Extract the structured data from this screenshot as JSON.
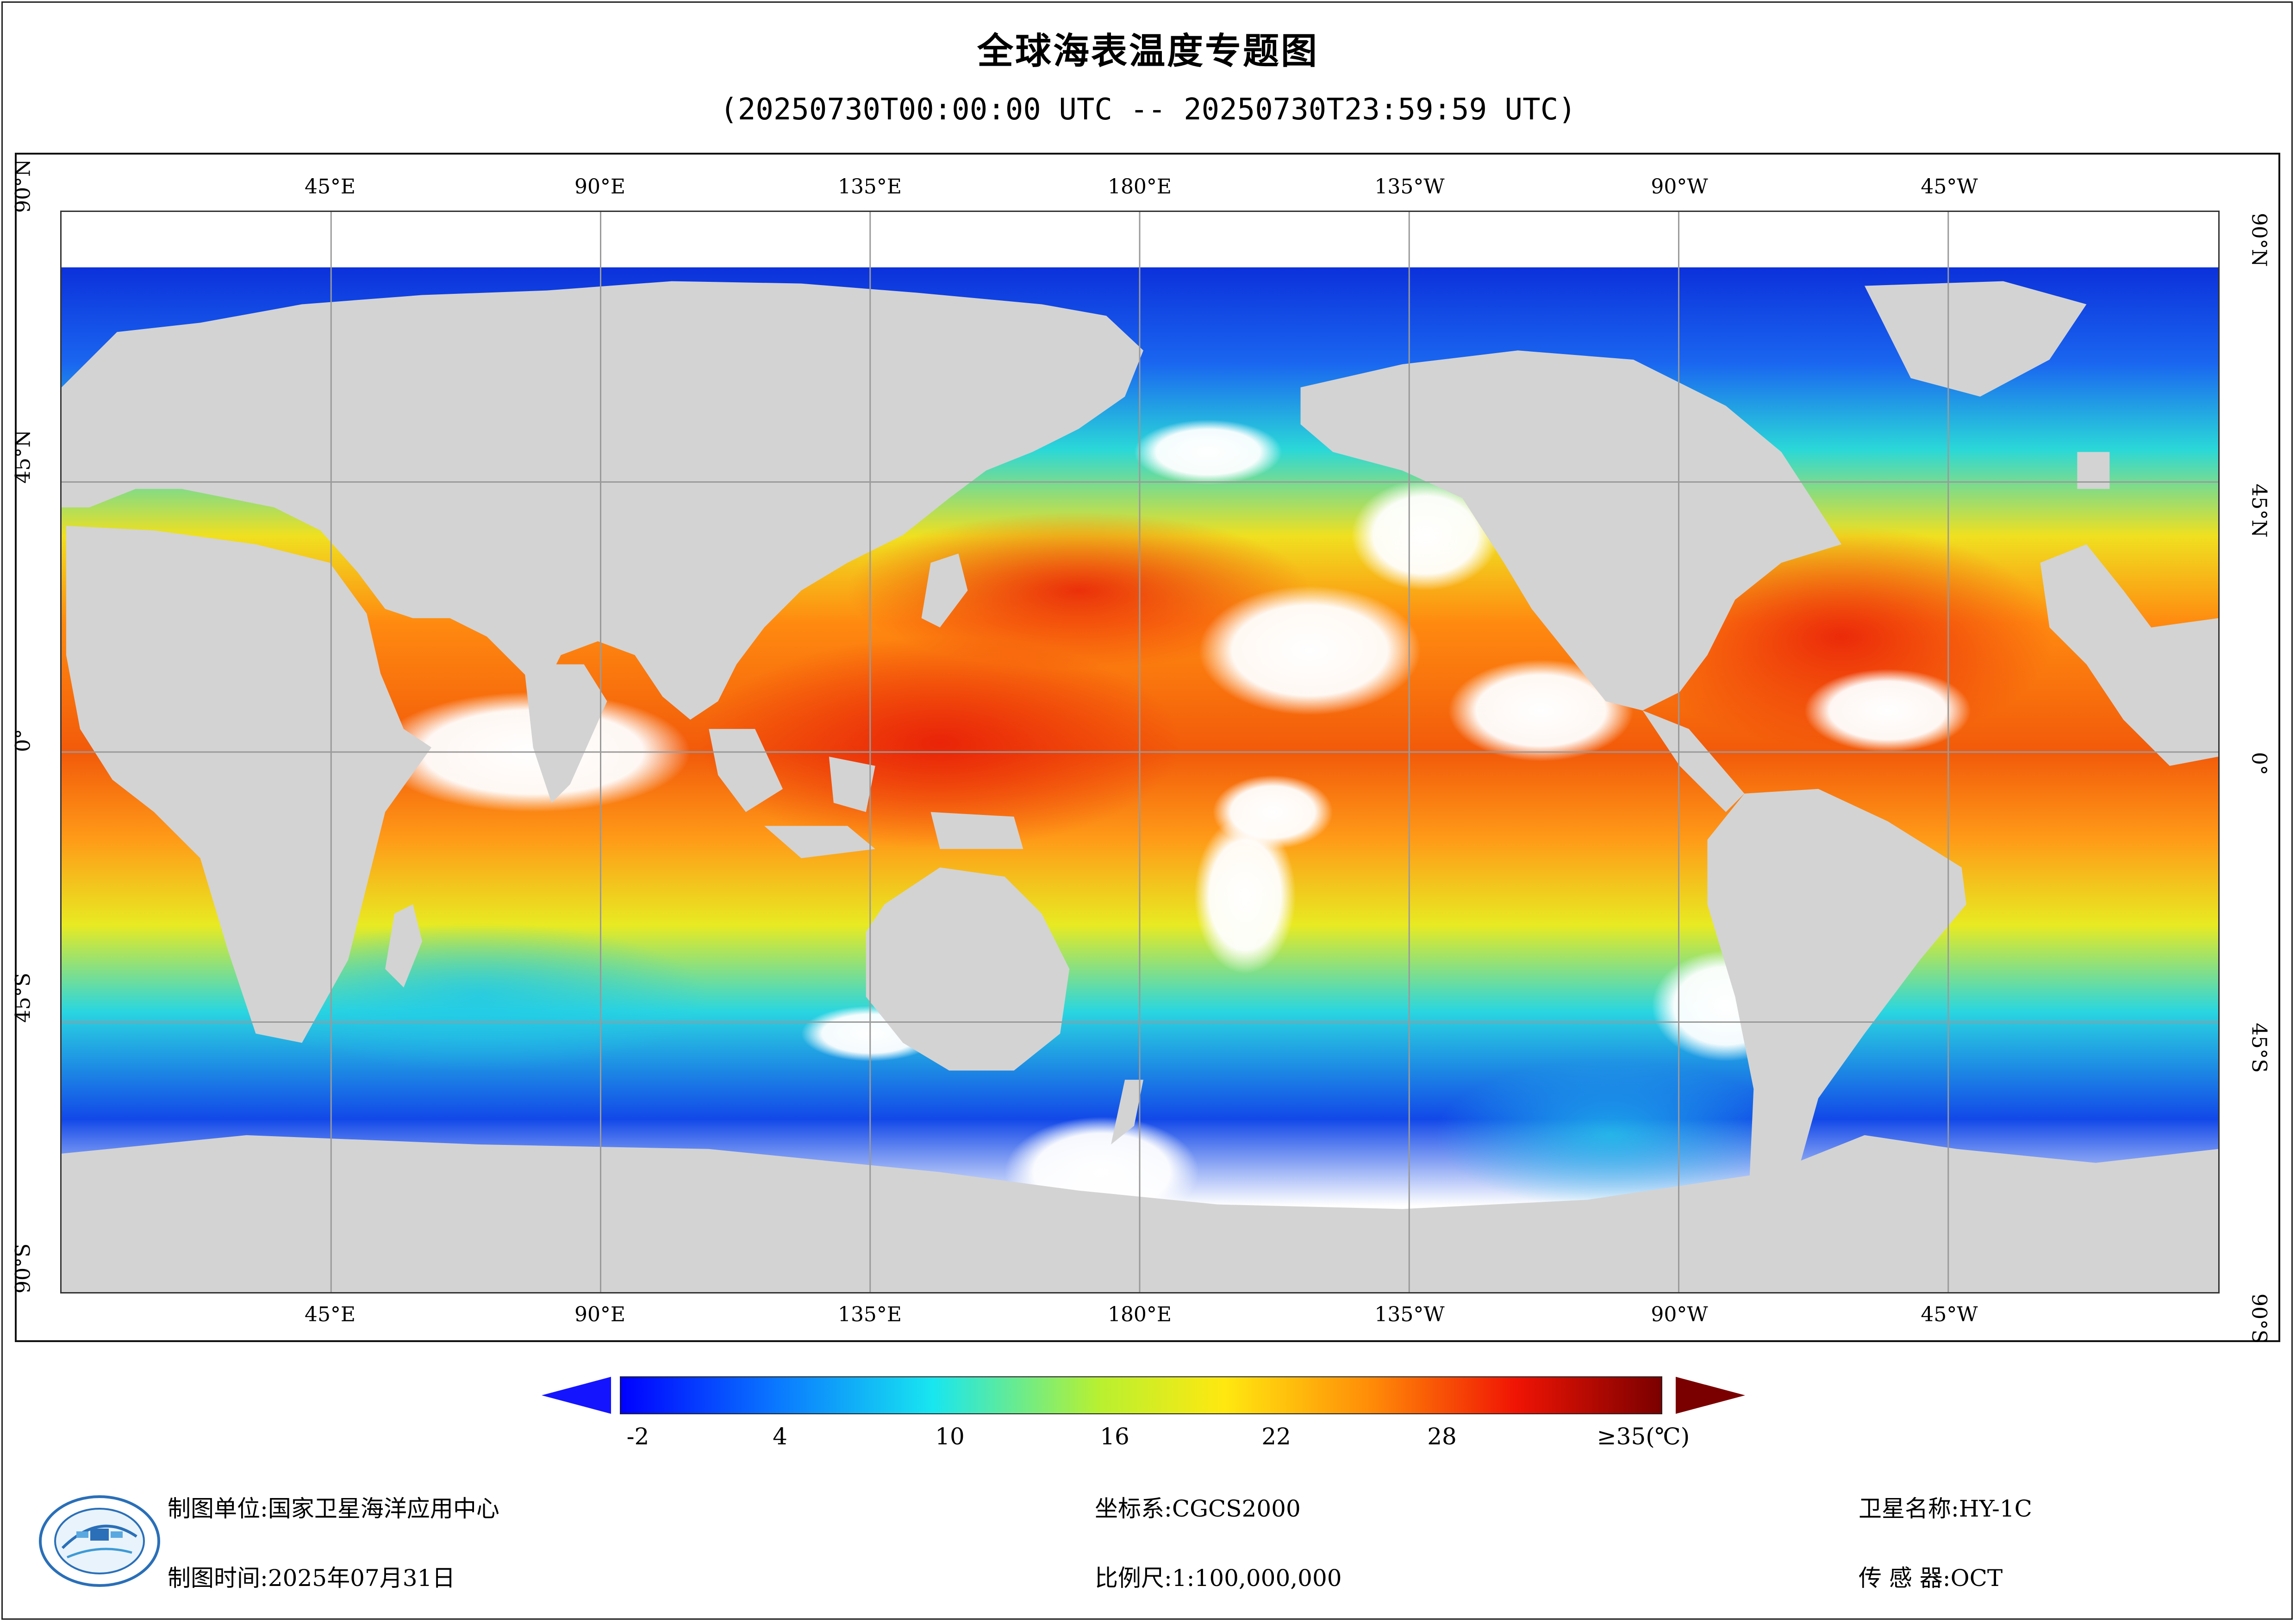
{
  "title": "全球海表温度专题图",
  "subtitle": "(20250730T00:00:00 UTC -- 20250730T23:59:59 UTC)",
  "map": {
    "lon_ticks_top": [
      "45°E",
      "90°E",
      "135°E",
      "180°E",
      "135°W",
      "90°W",
      "45°W"
    ],
    "lon_ticks_bottom": [
      "45°E",
      "90°E",
      "135°E",
      "180°E",
      "135°W",
      "90°W",
      "45°W"
    ],
    "lat_ticks_left": [
      "90°N",
      "45°N",
      "0°",
      "45°S",
      "90°S"
    ],
    "lat_ticks_right": [
      "90°N",
      "45°N",
      "0°",
      "45°S",
      "90°S"
    ],
    "colors": {
      "land": "#d3d3d3",
      "no_data": "#ffffff",
      "grid": "#9a9a9a"
    }
  },
  "colorbar": {
    "labels": [
      "-2",
      "4",
      "10",
      "16",
      "22",
      "28",
      "≥35(℃)"
    ],
    "under_color": "#1414ff",
    "over_color": "#7a0000"
  },
  "footer": {
    "unit": "制图单位:国家卫星海洋应用中心",
    "time": "制图时间:2025年07月31日",
    "crs": "坐标系:CGCS2000",
    "scale": "比例尺:1:100,000,000",
    "satellite": "卫星名称:HY-1C",
    "sensor": "传 感 器:OCT"
  }
}
